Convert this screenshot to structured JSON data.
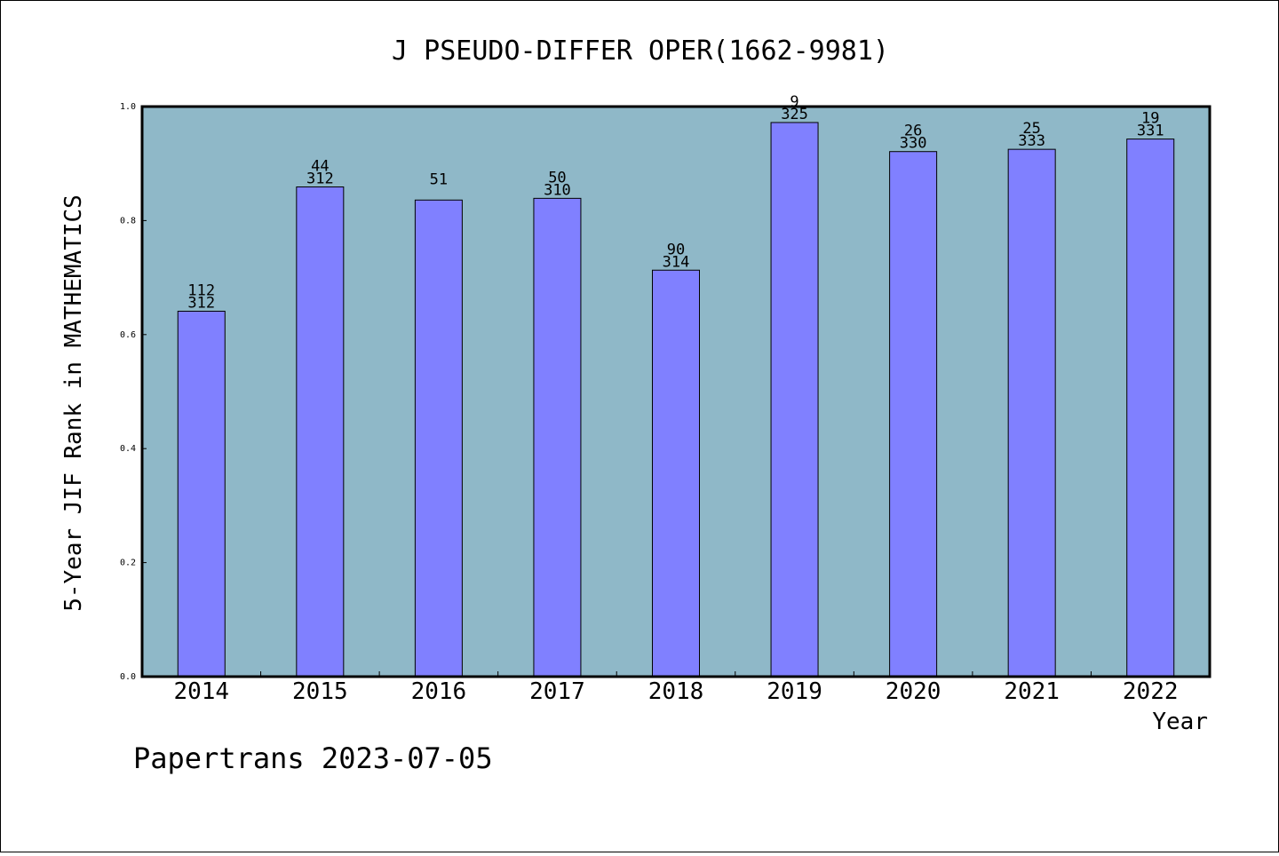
{
  "chart_data": {
    "type": "bar",
    "title": "J PSEUDO-DIFFER OPER(1662-9981)",
    "xlabel": "Year",
    "ylabel": "5-Year JIF Rank in MATHEMATICS",
    "ylim": [
      0,
      1.0
    ],
    "yticks": [
      "0.0",
      "0.2",
      "0.4",
      "0.6",
      "0.8",
      "1.0"
    ],
    "categories": [
      "2014",
      "2015",
      "2016",
      "2017",
      "2018",
      "2019",
      "2020",
      "2021",
      "2022"
    ],
    "values": [
      0.641,
      0.859,
      0.836,
      0.839,
      0.713,
      0.972,
      0.921,
      0.925,
      0.943
    ],
    "rank_labels": [
      "112",
      "44",
      "51",
      "50",
      "90",
      "9",
      "26",
      "25",
      "19"
    ],
    "total_labels": [
      "312",
      "312",
      "",
      "310",
      "314",
      "325",
      "330",
      "333",
      "331"
    ],
    "grid": false,
    "colors": {
      "plot_bg": "#8fb8c8",
      "bar": "#8080ff",
      "axis": "#000000"
    }
  },
  "footer": {
    "text": "Papertrans 2023-07-05"
  }
}
